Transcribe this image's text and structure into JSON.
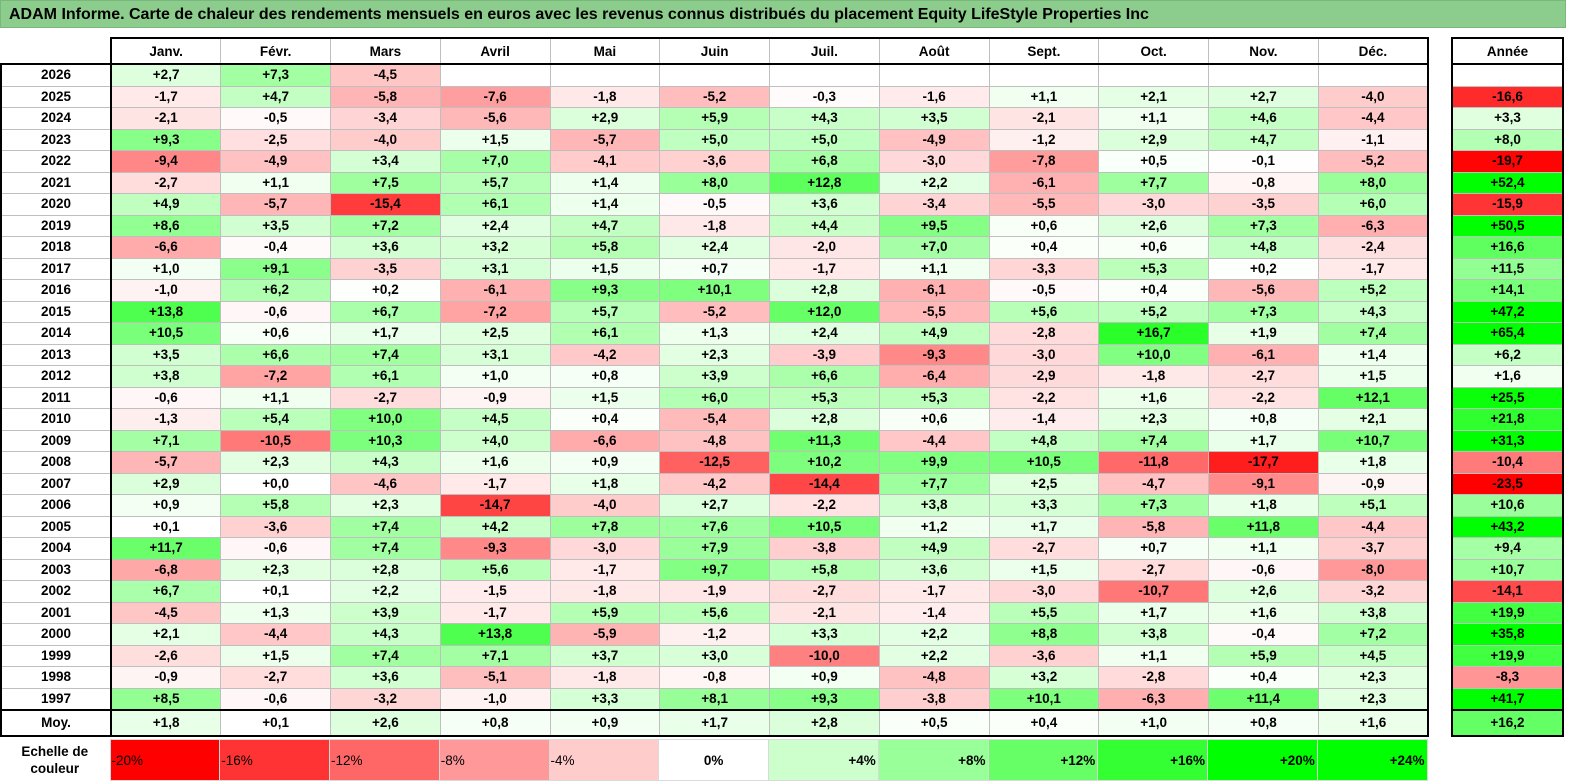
{
  "title": "ADAM Informe. Carte de chaleur des rendements mensuels en euros avec les revenus connus distribués du placement Equity LifeStyle Properties Inc",
  "chart_data": {
    "type": "heatmap",
    "title": "ADAM Informe. Carte de chaleur des rendements mensuels en euros avec les revenus connus distribués du placement Equity LifeStyle Properties Inc",
    "months": [
      "Janv.",
      "Févr.",
      "Mars",
      "Avril",
      "Mai",
      "Juin",
      "Juil.",
      "Août",
      "Sept.",
      "Oct.",
      "Nov.",
      "Déc."
    ],
    "year_header": "Année",
    "rows": [
      {
        "year": "2026",
        "values": [
          "+2,7",
          "+7,3",
          "-4,5",
          "",
          "",
          "",
          "",
          "",
          "",
          "",
          "",
          ""
        ],
        "annual": ""
      },
      {
        "year": "2025",
        "values": [
          "-1,7",
          "+4,7",
          "-5,8",
          "-7,6",
          "-1,8",
          "-5,2",
          "-0,3",
          "-1,6",
          "+1,1",
          "+2,1",
          "+2,7",
          "-4,0"
        ],
        "annual": "-16,6"
      },
      {
        "year": "2024",
        "values": [
          "-2,1",
          "-0,5",
          "-3,4",
          "-5,6",
          "+2,9",
          "+5,9",
          "+4,3",
          "+3,5",
          "-2,1",
          "+1,1",
          "+4,6",
          "-4,4"
        ],
        "annual": "+3,3"
      },
      {
        "year": "2023",
        "values": [
          "+9,3",
          "-2,5",
          "-4,0",
          "+1,5",
          "-5,7",
          "+5,0",
          "+5,0",
          "-4,9",
          "-1,2",
          "+2,9",
          "+4,7",
          "-1,1"
        ],
        "annual": "+8,0"
      },
      {
        "year": "2022",
        "values": [
          "-9,4",
          "-4,9",
          "+3,4",
          "+7,0",
          "-4,1",
          "-3,6",
          "+6,8",
          "-3,0",
          "-7,8",
          "+0,5",
          "-0,1",
          "-5,2"
        ],
        "annual": "-19,7"
      },
      {
        "year": "2021",
        "values": [
          "-2,7",
          "+1,1",
          "+7,5",
          "+5,7",
          "+1,4",
          "+8,0",
          "+12,8",
          "+2,2",
          "-6,1",
          "+7,7",
          "-0,8",
          "+8,0"
        ],
        "annual": "+52,4"
      },
      {
        "year": "2020",
        "values": [
          "+4,9",
          "-5,7",
          "-15,4",
          "+6,1",
          "+1,4",
          "-0,5",
          "+3,6",
          "-3,4",
          "-5,5",
          "-3,0",
          "-3,5",
          "+6,0"
        ],
        "annual": "-15,9"
      },
      {
        "year": "2019",
        "values": [
          "+8,6",
          "+3,5",
          "+7,2",
          "+2,4",
          "+4,7",
          "-1,8",
          "+4,4",
          "+9,5",
          "+0,6",
          "+2,6",
          "+7,3",
          "-6,3"
        ],
        "annual": "+50,5"
      },
      {
        "year": "2018",
        "values": [
          "-6,6",
          "-0,4",
          "+3,6",
          "+3,2",
          "+5,8",
          "+2,4",
          "-2,0",
          "+7,0",
          "+0,4",
          "+0,6",
          "+4,8",
          "-2,4"
        ],
        "annual": "+16,6"
      },
      {
        "year": "2017",
        "values": [
          "+1,0",
          "+9,1",
          "-3,5",
          "+3,1",
          "+1,5",
          "+0,7",
          "-1,7",
          "+1,1",
          "-3,3",
          "+5,3",
          "+0,2",
          "-1,7"
        ],
        "annual": "+11,5"
      },
      {
        "year": "2016",
        "values": [
          "-1,0",
          "+6,2",
          "+0,2",
          "-6,1",
          "+9,3",
          "+10,1",
          "+2,8",
          "-6,1",
          "-0,5",
          "+0,4",
          "-5,6",
          "+5,2"
        ],
        "annual": "+14,1"
      },
      {
        "year": "2015",
        "values": [
          "+13,8",
          "-0,6",
          "+6,7",
          "-7,2",
          "+5,7",
          "-5,2",
          "+12,0",
          "-5,5",
          "+5,6",
          "+5,2",
          "+7,3",
          "+4,3"
        ],
        "annual": "+47,2"
      },
      {
        "year": "2014",
        "values": [
          "+10,5",
          "+0,6",
          "+1,7",
          "+2,5",
          "+6,1",
          "+1,3",
          "+2,4",
          "+4,9",
          "-2,8",
          "+16,7",
          "+1,9",
          "+7,4"
        ],
        "annual": "+65,4"
      },
      {
        "year": "2013",
        "values": [
          "+3,5",
          "+6,6",
          "+7,4",
          "+3,1",
          "-4,2",
          "+2,3",
          "-3,9",
          "-9,3",
          "-3,0",
          "+10,0",
          "-6,1",
          "+1,4"
        ],
        "annual": "+6,2"
      },
      {
        "year": "2012",
        "values": [
          "+3,8",
          "-7,2",
          "+6,1",
          "+1,0",
          "+0,8",
          "+3,9",
          "+6,6",
          "-6,4",
          "-2,9",
          "-1,8",
          "-2,7",
          "+1,5"
        ],
        "annual": "+1,6"
      },
      {
        "year": "2011",
        "values": [
          "-0,6",
          "+1,1",
          "-2,7",
          "-0,9",
          "+1,5",
          "+6,0",
          "+5,3",
          "+5,3",
          "-2,2",
          "+1,6",
          "-2,2",
          "+12,1"
        ],
        "annual": "+25,5"
      },
      {
        "year": "2010",
        "values": [
          "-1,3",
          "+5,4",
          "+10,0",
          "+4,5",
          "+0,4",
          "-5,4",
          "+2,8",
          "+0,6",
          "-1,4",
          "+2,3",
          "+0,8",
          "+2,1"
        ],
        "annual": "+21,8"
      },
      {
        "year": "2009",
        "values": [
          "+7,1",
          "-10,5",
          "+10,3",
          "+4,0",
          "-6,6",
          "-4,8",
          "+11,3",
          "-4,4",
          "+4,8",
          "+7,4",
          "+1,7",
          "+10,7"
        ],
        "annual": "+31,3"
      },
      {
        "year": "2008",
        "values": [
          "-5,7",
          "+2,3",
          "+4,3",
          "+1,6",
          "+0,9",
          "-12,5",
          "+10,2",
          "+9,9",
          "+10,5",
          "-11,8",
          "-17,7",
          "+1,8"
        ],
        "annual": "-10,4"
      },
      {
        "year": "2007",
        "values": [
          "+2,9",
          "+0,0",
          "-4,6",
          "-1,7",
          "+1,8",
          "-4,2",
          "-14,4",
          "+7,7",
          "+2,5",
          "-4,7",
          "-9,1",
          "-0,9"
        ],
        "annual": "-23,5"
      },
      {
        "year": "2006",
        "values": [
          "+0,9",
          "+5,8",
          "+2,3",
          "-14,7",
          "-4,0",
          "+2,7",
          "-2,2",
          "+3,8",
          "+3,3",
          "+7,3",
          "+1,8",
          "+5,1"
        ],
        "annual": "+10,6"
      },
      {
        "year": "2005",
        "values": [
          "+0,1",
          "-3,6",
          "+7,4",
          "+4,2",
          "+7,8",
          "+7,6",
          "+10,5",
          "+1,2",
          "+1,7",
          "-5,8",
          "+11,8",
          "-4,4"
        ],
        "annual": "+43,2"
      },
      {
        "year": "2004",
        "values": [
          "+11,7",
          "-0,6",
          "+7,4",
          "-9,3",
          "-3,0",
          "+7,9",
          "-3,8",
          "+4,9",
          "-2,7",
          "+0,7",
          "+1,1",
          "-3,7"
        ],
        "annual": "+9,4"
      },
      {
        "year": "2003",
        "values": [
          "-6,8",
          "+2,3",
          "+2,8",
          "+5,6",
          "-1,7",
          "+9,7",
          "+5,8",
          "+3,6",
          "+1,5",
          "-2,7",
          "-0,6",
          "-8,0"
        ],
        "annual": "+10,7"
      },
      {
        "year": "2002",
        "values": [
          "+6,7",
          "+0,1",
          "+2,2",
          "-1,5",
          "-1,8",
          "-1,9",
          "-2,7",
          "-1,7",
          "-3,0",
          "-10,7",
          "+2,6",
          "-3,2"
        ],
        "annual": "-14,1"
      },
      {
        "year": "2001",
        "values": [
          "-4,5",
          "+1,3",
          "+3,9",
          "-1,7",
          "+5,9",
          "+5,6",
          "-2,1",
          "-1,4",
          "+5,5",
          "+1,7",
          "+1,6",
          "+3,8"
        ],
        "annual": "+19,9"
      },
      {
        "year": "2000",
        "values": [
          "+2,1",
          "-4,4",
          "+4,3",
          "+13,8",
          "-5,9",
          "-1,2",
          "+3,3",
          "+2,2",
          "+8,8",
          "+3,8",
          "-0,4",
          "+7,2"
        ],
        "annual": "+35,8"
      },
      {
        "year": "1999",
        "values": [
          "-2,6",
          "+1,5",
          "+7,4",
          "+7,1",
          "+3,7",
          "+3,0",
          "-10,0",
          "+2,2",
          "-3,6",
          "+1,1",
          "+5,9",
          "+4,5"
        ],
        "annual": "+19,9"
      },
      {
        "year": "1998",
        "values": [
          "-0,9",
          "-2,7",
          "+3,6",
          "-5,1",
          "-1,8",
          "-0,8",
          "+0,9",
          "-4,8",
          "+3,2",
          "-2,8",
          "+0,4",
          "+2,3"
        ],
        "annual": "-8,3"
      },
      {
        "year": "1997",
        "values": [
          "+8,5",
          "-0,6",
          "-3,2",
          "-1,0",
          "+3,3",
          "+8,1",
          "+9,3",
          "-3,8",
          "+10,1",
          "-6,3",
          "+11,4",
          "+2,3"
        ],
        "annual": "+41,7"
      }
    ],
    "average": {
      "label": "Moy.",
      "values": [
        "+1,8",
        "+0,1",
        "+2,6",
        "+0,8",
        "+0,9",
        "+1,7",
        "+2,8",
        "+0,5",
        "+0,4",
        "+1,0",
        "+0,8",
        "+1,6"
      ],
      "annual": "+16,2"
    },
    "scale": {
      "label": "Echelle de couleur",
      "stops": [
        {
          "label": "-20%",
          "value": -20,
          "color": "#ff0000"
        },
        {
          "label": "-16%",
          "value": -16,
          "color": "#ff3333"
        },
        {
          "label": "-12%",
          "value": -12,
          "color": "#ff6666"
        },
        {
          "label": "-8%",
          "value": -8,
          "color": "#ff9999"
        },
        {
          "label": "-4%",
          "value": -4,
          "color": "#ffcccc"
        },
        {
          "label": "0%",
          "value": 0,
          "color": "#ffffff"
        },
        {
          "label": "+4%",
          "value": 4,
          "color": "#ccffcc"
        },
        {
          "label": "+8%",
          "value": 8,
          "color": "#99ff99"
        },
        {
          "label": "+12%",
          "value": 12,
          "color": "#66ff66"
        },
        {
          "label": "+16%",
          "value": 16,
          "color": "#33ff33"
        },
        {
          "label": "+20%",
          "value": 20,
          "color": "#00ff00"
        },
        {
          "label": "+24%",
          "value": 24,
          "color": "#00ff00"
        }
      ]
    }
  }
}
